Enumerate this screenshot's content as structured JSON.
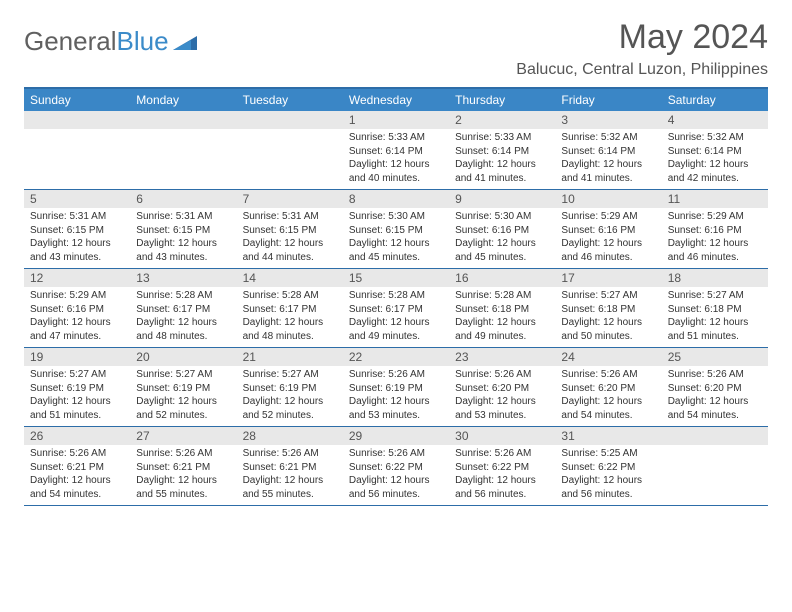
{
  "logo": {
    "text1": "General",
    "text2": "Blue"
  },
  "title": "May 2024",
  "location": "Balucuc, Central Luzon, Philippines",
  "colors": {
    "header_bg": "#3a86c6",
    "header_text": "#ffffff",
    "border": "#2d6da8",
    "daynum_bg": "#e8e8e8",
    "body_text": "#333333",
    "title_text": "#555555"
  },
  "dayNames": [
    "Sunday",
    "Monday",
    "Tuesday",
    "Wednesday",
    "Thursday",
    "Friday",
    "Saturday"
  ],
  "weeks": [
    [
      null,
      null,
      null,
      {
        "n": "1",
        "sr": "5:33 AM",
        "ss": "6:14 PM",
        "dl": "12 hours and 40 minutes."
      },
      {
        "n": "2",
        "sr": "5:33 AM",
        "ss": "6:14 PM",
        "dl": "12 hours and 41 minutes."
      },
      {
        "n": "3",
        "sr": "5:32 AM",
        "ss": "6:14 PM",
        "dl": "12 hours and 41 minutes."
      },
      {
        "n": "4",
        "sr": "5:32 AM",
        "ss": "6:14 PM",
        "dl": "12 hours and 42 minutes."
      }
    ],
    [
      {
        "n": "5",
        "sr": "5:31 AM",
        "ss": "6:15 PM",
        "dl": "12 hours and 43 minutes."
      },
      {
        "n": "6",
        "sr": "5:31 AM",
        "ss": "6:15 PM",
        "dl": "12 hours and 43 minutes."
      },
      {
        "n": "7",
        "sr": "5:31 AM",
        "ss": "6:15 PM",
        "dl": "12 hours and 44 minutes."
      },
      {
        "n": "8",
        "sr": "5:30 AM",
        "ss": "6:15 PM",
        "dl": "12 hours and 45 minutes."
      },
      {
        "n": "9",
        "sr": "5:30 AM",
        "ss": "6:16 PM",
        "dl": "12 hours and 45 minutes."
      },
      {
        "n": "10",
        "sr": "5:29 AM",
        "ss": "6:16 PM",
        "dl": "12 hours and 46 minutes."
      },
      {
        "n": "11",
        "sr": "5:29 AM",
        "ss": "6:16 PM",
        "dl": "12 hours and 46 minutes."
      }
    ],
    [
      {
        "n": "12",
        "sr": "5:29 AM",
        "ss": "6:16 PM",
        "dl": "12 hours and 47 minutes."
      },
      {
        "n": "13",
        "sr": "5:28 AM",
        "ss": "6:17 PM",
        "dl": "12 hours and 48 minutes."
      },
      {
        "n": "14",
        "sr": "5:28 AM",
        "ss": "6:17 PM",
        "dl": "12 hours and 48 minutes."
      },
      {
        "n": "15",
        "sr": "5:28 AM",
        "ss": "6:17 PM",
        "dl": "12 hours and 49 minutes."
      },
      {
        "n": "16",
        "sr": "5:28 AM",
        "ss": "6:18 PM",
        "dl": "12 hours and 49 minutes."
      },
      {
        "n": "17",
        "sr": "5:27 AM",
        "ss": "6:18 PM",
        "dl": "12 hours and 50 minutes."
      },
      {
        "n": "18",
        "sr": "5:27 AM",
        "ss": "6:18 PM",
        "dl": "12 hours and 51 minutes."
      }
    ],
    [
      {
        "n": "19",
        "sr": "5:27 AM",
        "ss": "6:19 PM",
        "dl": "12 hours and 51 minutes."
      },
      {
        "n": "20",
        "sr": "5:27 AM",
        "ss": "6:19 PM",
        "dl": "12 hours and 52 minutes."
      },
      {
        "n": "21",
        "sr": "5:27 AM",
        "ss": "6:19 PM",
        "dl": "12 hours and 52 minutes."
      },
      {
        "n": "22",
        "sr": "5:26 AM",
        "ss": "6:19 PM",
        "dl": "12 hours and 53 minutes."
      },
      {
        "n": "23",
        "sr": "5:26 AM",
        "ss": "6:20 PM",
        "dl": "12 hours and 53 minutes."
      },
      {
        "n": "24",
        "sr": "5:26 AM",
        "ss": "6:20 PM",
        "dl": "12 hours and 54 minutes."
      },
      {
        "n": "25",
        "sr": "5:26 AM",
        "ss": "6:20 PM",
        "dl": "12 hours and 54 minutes."
      }
    ],
    [
      {
        "n": "26",
        "sr": "5:26 AM",
        "ss": "6:21 PM",
        "dl": "12 hours and 54 minutes."
      },
      {
        "n": "27",
        "sr": "5:26 AM",
        "ss": "6:21 PM",
        "dl": "12 hours and 55 minutes."
      },
      {
        "n": "28",
        "sr": "5:26 AM",
        "ss": "6:21 PM",
        "dl": "12 hours and 55 minutes."
      },
      {
        "n": "29",
        "sr": "5:26 AM",
        "ss": "6:22 PM",
        "dl": "12 hours and 56 minutes."
      },
      {
        "n": "30",
        "sr": "5:26 AM",
        "ss": "6:22 PM",
        "dl": "12 hours and 56 minutes."
      },
      {
        "n": "31",
        "sr": "5:25 AM",
        "ss": "6:22 PM",
        "dl": "12 hours and 56 minutes."
      },
      null
    ]
  ],
  "labels": {
    "sunrise": "Sunrise:",
    "sunset": "Sunset:",
    "daylight": "Daylight:"
  }
}
